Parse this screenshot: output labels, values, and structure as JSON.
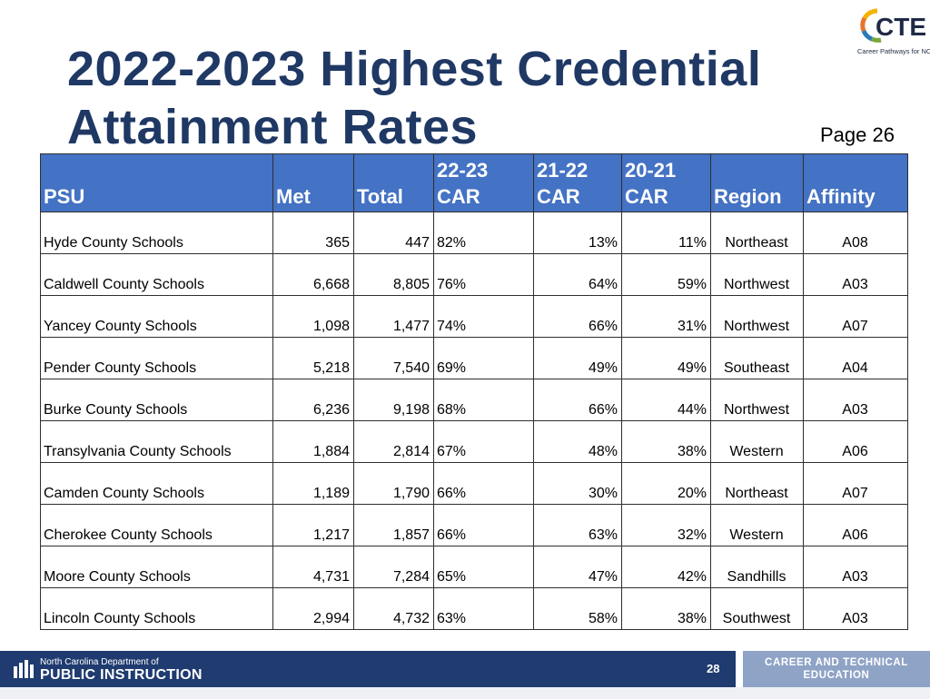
{
  "title": "2022-2023 Highest  Credential Attainment Rates",
  "page_label": "Page 26",
  "logo": {
    "text": "CTE",
    "subtitle": "Career Pathways for NC"
  },
  "table": {
    "headers": [
      "PSU",
      "Met",
      "Total",
      "22-23 CAR",
      "21-22 CAR",
      "20-21 CAR",
      "Region",
      "Affinity"
    ],
    "rows": [
      [
        "Hyde County Schools",
        "365",
        "447",
        "82%",
        "13%",
        "11%",
        "Northeast",
        "A08"
      ],
      [
        "Caldwell County Schools",
        "6,668",
        "8,805",
        "76%",
        "64%",
        "59%",
        "Northwest",
        "A03"
      ],
      [
        "Yancey County Schools",
        "1,098",
        "1,477",
        "74%",
        "66%",
        "31%",
        "Northwest",
        "A07"
      ],
      [
        "Pender County Schools",
        "5,218",
        "7,540",
        "69%",
        "49%",
        "49%",
        "Southeast",
        "A04"
      ],
      [
        "Burke County Schools",
        "6,236",
        "9,198",
        "68%",
        "66%",
        "44%",
        "Northwest",
        "A03"
      ],
      [
        "Transylvania County Schools",
        "1,884",
        "2,814",
        "67%",
        "48%",
        "38%",
        "Western",
        "A06"
      ],
      [
        "Camden County Schools",
        "1,189",
        "1,790",
        "66%",
        "30%",
        "20%",
        "Northeast",
        "A07"
      ],
      [
        "Cherokee County Schools",
        "1,217",
        "1,857",
        "66%",
        "63%",
        "32%",
        "Western",
        "A06"
      ],
      [
        "Moore County Schools",
        "4,731",
        "7,284",
        "65%",
        "47%",
        "42%",
        "Sandhills",
        "A03"
      ],
      [
        "Lincoln County Schools",
        "2,994",
        "4,732",
        "63%",
        "58%",
        "38%",
        "Southwest",
        "A03"
      ]
    ]
  },
  "footer": {
    "org_small": "North Carolina Department of",
    "org_big": "PUBLIC INSTRUCTION",
    "slide_number": "28",
    "right_text": "CAREER AND TECHNICAL EDUCATION"
  },
  "colors": {
    "title": "#1f3864",
    "header_bg": "#4472c4",
    "footer_bg": "#1f3b70",
    "footer_right_bg": "#8fa3c6"
  },
  "icons": {
    "logo": "cte-ring-logo",
    "dpi": "dpi-building-icon"
  }
}
